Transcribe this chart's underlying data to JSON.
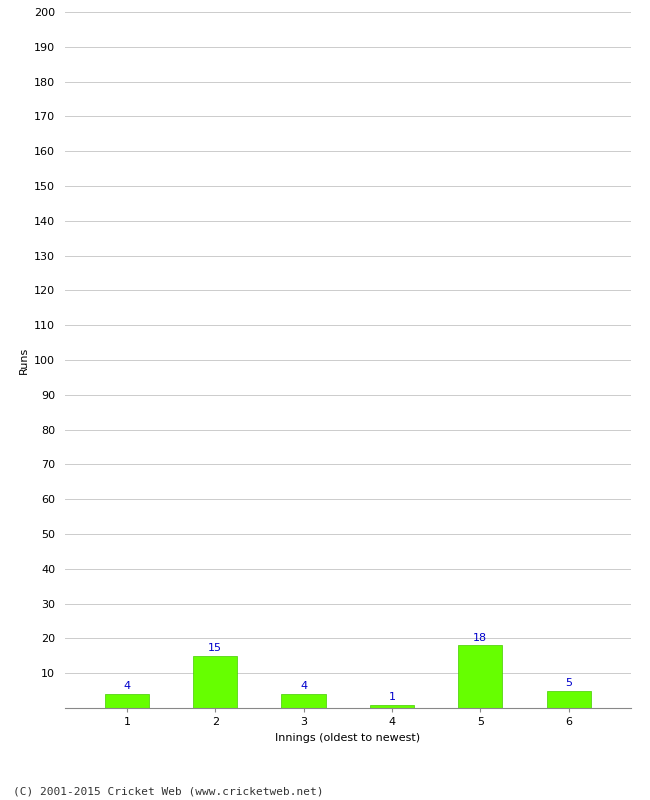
{
  "categories": [
    "1",
    "2",
    "3",
    "4",
    "5",
    "6"
  ],
  "values": [
    4,
    15,
    4,
    1,
    18,
    5
  ],
  "bar_color": "#66ff00",
  "bar_edge_color": "#44cc00",
  "label_color": "#0000cc",
  "xlabel": "Innings (oldest to newest)",
  "ylabel": "Runs",
  "ylim": [
    0,
    200
  ],
  "yticks": [
    0,
    10,
    20,
    30,
    40,
    50,
    60,
    70,
    80,
    90,
    100,
    110,
    120,
    130,
    140,
    150,
    160,
    170,
    180,
    190,
    200
  ],
  "grid_color": "#cccccc",
  "background_color": "#ffffff",
  "footer": "(C) 2001-2015 Cricket Web (www.cricketweb.net)",
  "bar_width": 0.5,
  "label_fontsize": 8,
  "axis_label_fontsize": 8,
  "tick_fontsize": 8,
  "footer_fontsize": 8
}
